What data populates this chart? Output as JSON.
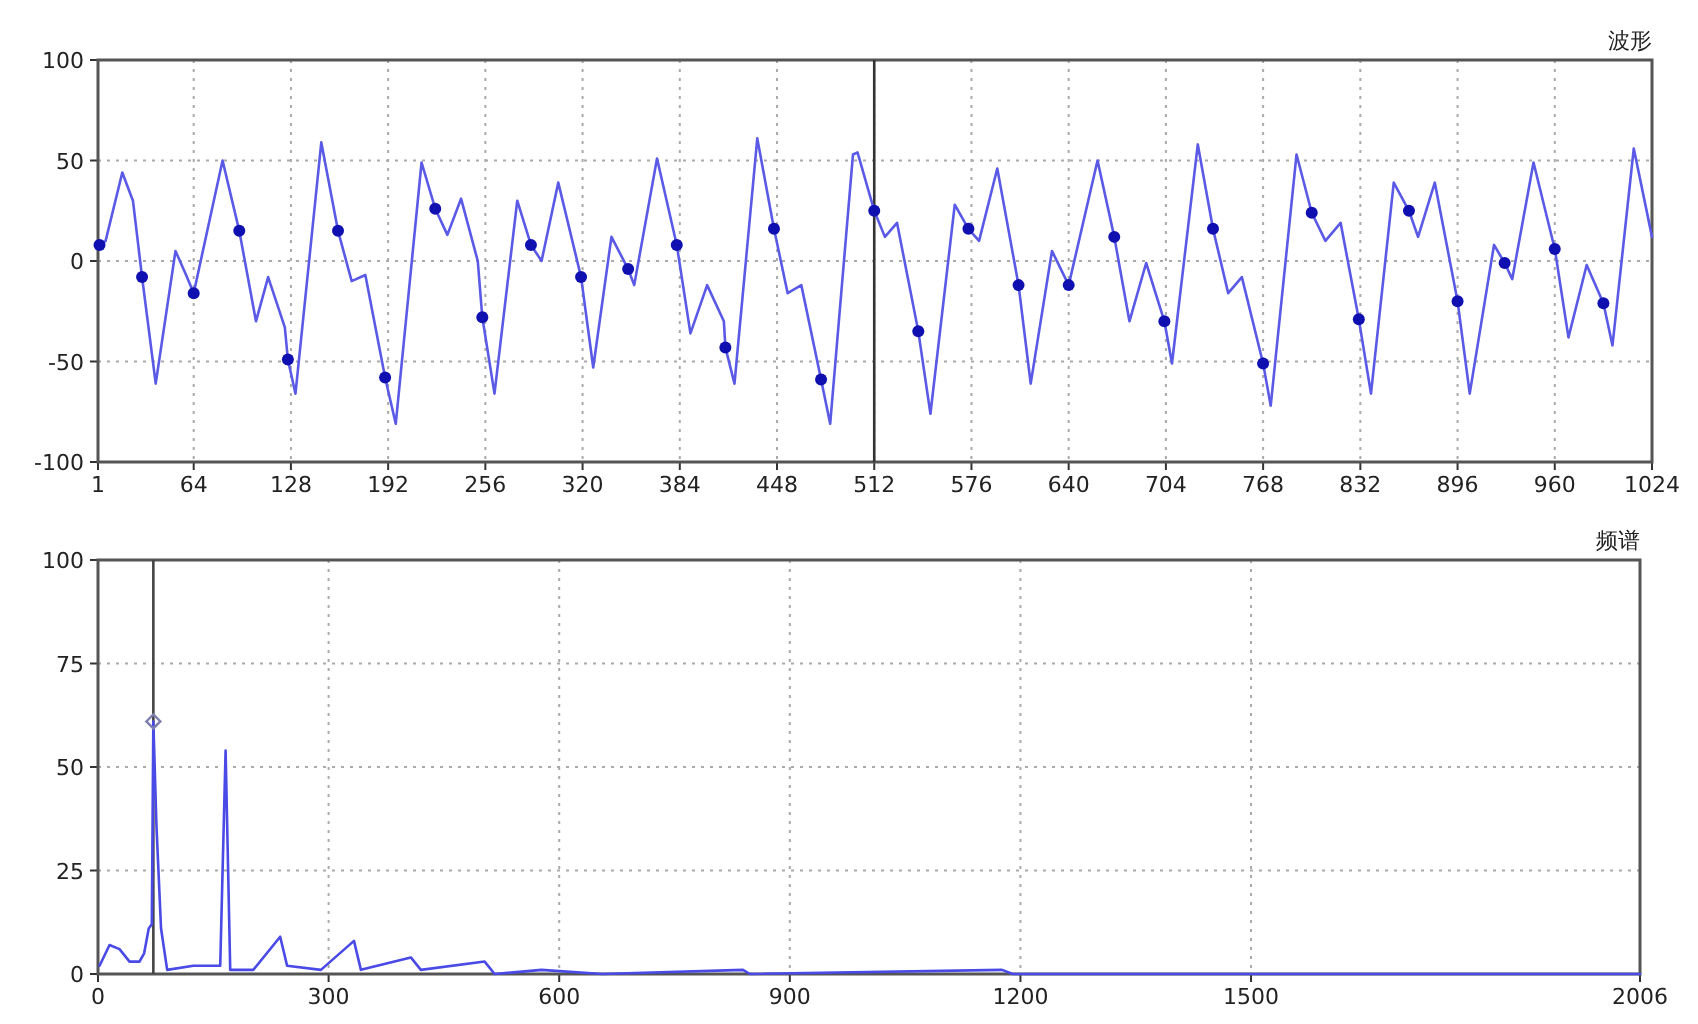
{
  "chart_data": [
    {
      "type": "line",
      "title": "波形",
      "xlim": [
        1,
        1024
      ],
      "xticks": [
        1,
        64,
        128,
        192,
        256,
        320,
        384,
        448,
        512,
        576,
        640,
        704,
        768,
        832,
        896,
        960,
        1024
      ],
      "ylim": [
        -100,
        100
      ],
      "yticks": [
        -100,
        -50,
        0,
        50,
        100
      ],
      "grid": true,
      "ref_lines": [
        {
          "axis": "x",
          "value": 512,
          "color": "#333333"
        }
      ],
      "series": [
        {
          "color": "#5a5ae6",
          "x": [
            2,
            6,
            17,
            24,
            30,
            39,
            52,
            59,
            64,
            83,
            94,
            105,
            113,
            124,
            126,
            131,
            148,
            159,
            168,
            177,
            190,
            197,
            214,
            223,
            231,
            240,
            251,
            254,
            262,
            277,
            286,
            293,
            304,
            319,
            327,
            339,
            350,
            354,
            369,
            382,
            391,
            402,
            413,
            414,
            420,
            435,
            446,
            455,
            464,
            477,
            483,
            498,
            501,
            512,
            519,
            527,
            541,
            549,
            565,
            574,
            581,
            593,
            607,
            615,
            629,
            640,
            659,
            670,
            680,
            691,
            703,
            708,
            725,
            735,
            745,
            754,
            768,
            773,
            790,
            800,
            809,
            819,
            831,
            839,
            854,
            864,
            870,
            881,
            896,
            904,
            920,
            927,
            932,
            946,
            960,
            969,
            981,
            992,
            998,
            1012,
            1024
          ],
          "values": [
            8,
            10,
            44,
            30,
            -8,
            -61,
            5,
            -7,
            -16,
            50,
            15,
            -30,
            -8,
            -33,
            -49,
            -66,
            59,
            15,
            -10,
            -7,
            -58,
            -81,
            49,
            26,
            13,
            31,
            0,
            -28,
            -66,
            30,
            8,
            0,
            39,
            -8,
            -53,
            12,
            -4,
            -12,
            51,
            8,
            -36,
            -12,
            -30,
            -43,
            -61,
            61,
            16,
            -16,
            -12,
            -59,
            -81,
            53,
            54,
            25,
            12,
            19,
            -35,
            -76,
            28,
            16,
            10,
            46,
            -12,
            -61,
            5,
            -12,
            50,
            12,
            -30,
            -1,
            -30,
            -51,
            58,
            16,
            -16,
            -8,
            -51,
            -72,
            53,
            24,
            10,
            19,
            -29,
            -66,
            39,
            25,
            12,
            39,
            -20,
            -66,
            8,
            -1,
            -9,
            49,
            6,
            -38,
            -2,
            -21,
            -42,
            56,
            12
          ]
        },
        {
          "type": "scatter",
          "color": "#1010b0",
          "marker": "circle",
          "x": [
            2,
            30,
            64,
            94,
            126,
            159,
            190,
            223,
            254,
            286,
            319,
            350,
            382,
            414,
            446,
            477,
            512,
            541,
            574,
            607,
            640,
            670,
            703,
            735,
            768,
            800,
            831,
            864,
            896,
            927,
            960,
            992
          ],
          "values": [
            8,
            -8,
            -16,
            15,
            -49,
            15,
            -58,
            26,
            -28,
            8,
            -8,
            -4,
            8,
            -43,
            16,
            -59,
            25,
            -35,
            16,
            -12,
            -12,
            12,
            -30,
            16,
            -51,
            24,
            -29,
            25,
            -20,
            -1,
            6,
            -21
          ]
        }
      ]
    },
    {
      "type": "line",
      "title": "频谱",
      "xlim": [
        0,
        2006
      ],
      "xticks": [
        0,
        300,
        600,
        900,
        1200,
        1500,
        2006
      ],
      "ylim": [
        0,
        100
      ],
      "yticks": [
        0,
        25,
        50,
        75,
        100
      ],
      "grid": true,
      "ref_lines": [
        {
          "axis": "x",
          "value": 72,
          "color": "#444444"
        }
      ],
      "series": [
        {
          "color": "#4a4ae6",
          "x": [
            2,
            15,
            28,
            41,
            54,
            60,
            66,
            70,
            72,
            76,
            82,
            90,
            124,
            159,
            166,
            172,
            202,
            237,
            246,
            290,
            333,
            342,
            407,
            420,
            503,
            516,
            577,
            656,
            839,
            848,
            1176,
            1190,
            2006
          ],
          "values": [
            2,
            7,
            6,
            3,
            3,
            5,
            11,
            12,
            61,
            36,
            11,
            1,
            2,
            2,
            54,
            1,
            1,
            9,
            2,
            1,
            8,
            1,
            4,
            1,
            3,
            0,
            1,
            0,
            1,
            0,
            1,
            0,
            0
          ]
        },
        {
          "type": "scatter",
          "color": "#8080b0",
          "marker": "diamond",
          "x": [
            72
          ],
          "values": [
            61
          ]
        }
      ]
    }
  ]
}
